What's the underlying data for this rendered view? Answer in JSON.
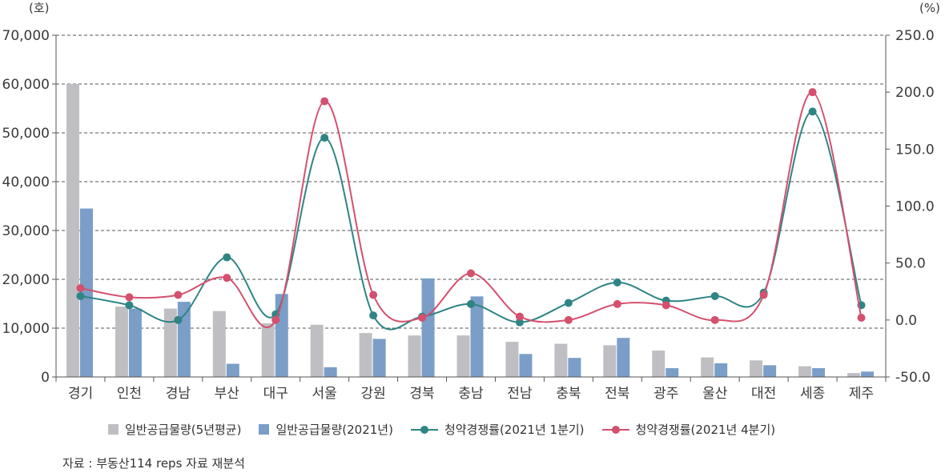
{
  "chart_data": {
    "type": "bar+line",
    "left_unit": "(호)",
    "right_unit": "(%)",
    "categories": [
      "경기",
      "인천",
      "경남",
      "부산",
      "대구",
      "서울",
      "강원",
      "경북",
      "충남",
      "전남",
      "충북",
      "전북",
      "광주",
      "울산",
      "대전",
      "세종",
      "제주"
    ],
    "y_left": {
      "min": 0,
      "max": 70000,
      "ticks": [
        "0",
        "10,000",
        "20,000",
        "30,000",
        "40,000",
        "50,000",
        "60,000",
        "70,000"
      ]
    },
    "y_right": {
      "min": -50,
      "max": 250,
      "ticks": [
        "-50.0",
        "0.0",
        "50.0",
        "100.0",
        "150.0",
        "200.0",
        "250.0"
      ]
    },
    "grid": "dashed horizontal",
    "bar_series": [
      {
        "name": "일반공급물량(5년평균)",
        "color": "#bfbfc3",
        "values": [
          60000,
          14400,
          14000,
          13500,
          11000,
          10700,
          9000,
          8500,
          8500,
          7200,
          6800,
          6500,
          5400,
          4000,
          3400,
          2200,
          800
        ]
      },
      {
        "name": "일반공급물량(2021년)",
        "color": "#7a9ec7",
        "values": [
          34500,
          14000,
          15400,
          2700,
          17000,
          2000,
          7800,
          20200,
          16500,
          4700,
          3900,
          8000,
          1800,
          2800,
          2400,
          1800,
          1100
        ]
      }
    ],
    "line_series": [
      {
        "name": "청약경쟁률(2021년 1분기)",
        "color": "#2f8484",
        "values": [
          21,
          13,
          0,
          55,
          5,
          160,
          4,
          3,
          14,
          -2,
          15,
          33,
          17,
          21,
          24,
          183,
          13
        ]
      },
      {
        "name": "청약경쟁률(2021년 4분기)",
        "color": "#d4506e",
        "values": [
          28,
          20,
          22,
          37,
          0,
          192,
          22,
          2,
          41,
          3,
          0,
          14,
          13,
          0,
          22,
          200,
          2
        ]
      }
    ],
    "legend": [
      {
        "label": "일반공급물량(5년평균)",
        "kind": "bar",
        "color": "#bfbfc3"
      },
      {
        "label": "일반공급물량(2021년)",
        "kind": "bar",
        "color": "#7a9ec7"
      },
      {
        "label": "청약경쟁률(2021년 1분기)",
        "kind": "line",
        "color": "#2f8484"
      },
      {
        "label": "청약경쟁률(2021년 4분기)",
        "kind": "line",
        "color": "#d4506e"
      }
    ],
    "source": "자료 : 부동산114 reps 자료 재분석"
  }
}
